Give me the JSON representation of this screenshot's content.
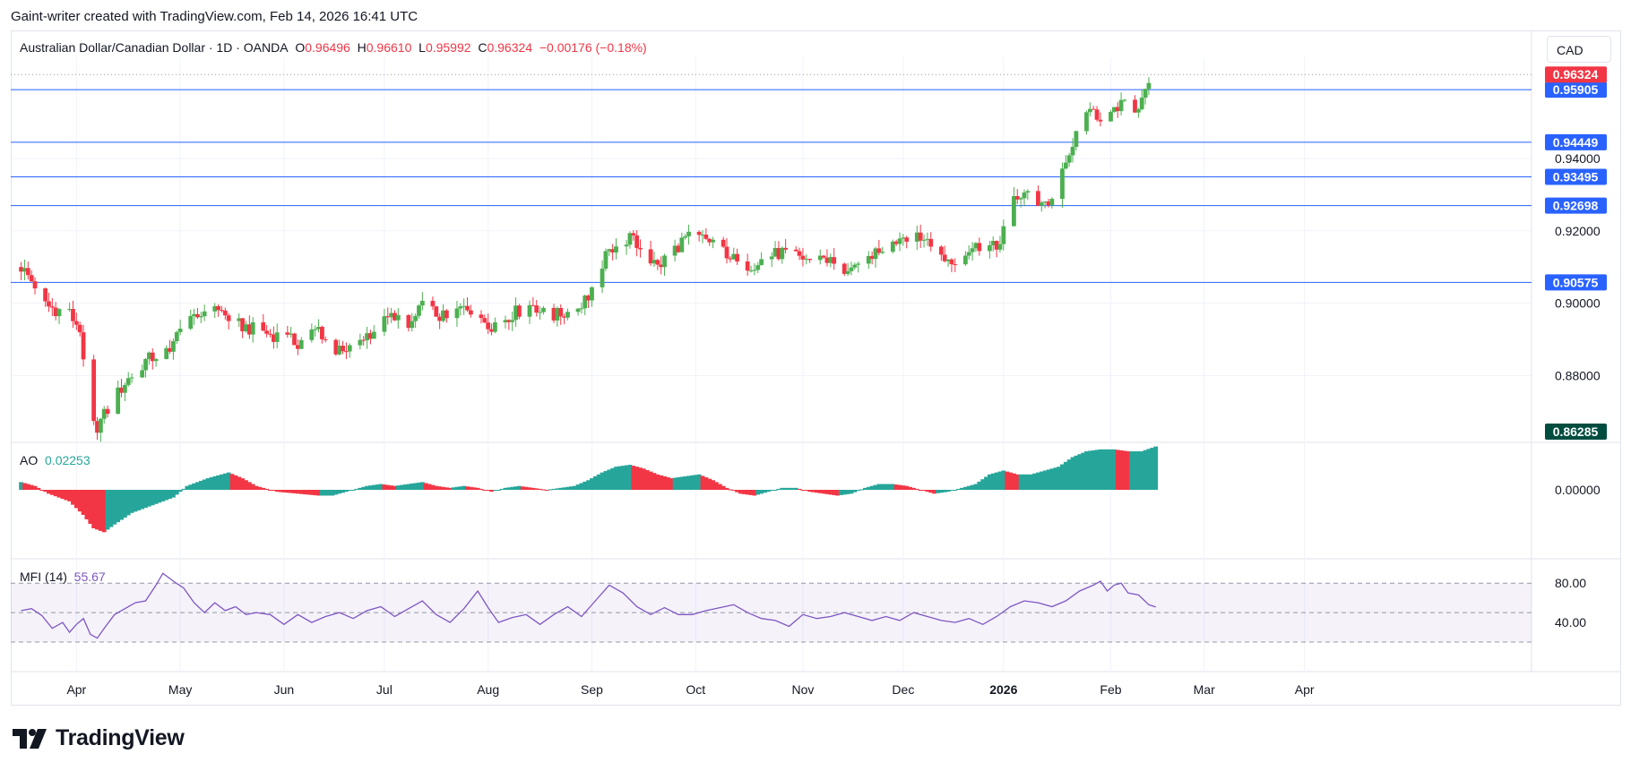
{
  "header": {
    "caption": "Gaint-writer created with TradingView.com, Feb 14, 2026 16:41 UTC"
  },
  "legend": {
    "symbol": "Australian Dollar/Canadian Dollar · 1D · OANDA",
    "o_label": "O",
    "o": "0.96496",
    "h_label": "H",
    "h": "0.96610",
    "l_label": "L",
    "l": "0.95992",
    "c_label": "C",
    "c": "0.96324",
    "change": "−0.00176 (−0.18%)"
  },
  "currency_button": "CAD",
  "ao": {
    "label": "AO",
    "value": "0.02253"
  },
  "mfi": {
    "label": "MFI (14)",
    "value": "55.67"
  },
  "branding": {
    "logo_text": "TradingView"
  },
  "colors": {
    "up": "#26a69a",
    "down": "#f23645",
    "candle_up": "#4caf50",
    "line": "#2962ff",
    "mfi": "#7e57c2"
  },
  "chart_data": [
    {
      "type": "candlestick",
      "title": "Australian Dollar/Canadian Dollar · 1D · OANDA",
      "y_range": [
        0.862,
        0.968
      ],
      "y_ticks": [
        "0.94000",
        "0.92000",
        "0.90000",
        "0.88000"
      ],
      "x_ticks": [
        {
          "label": "Apr",
          "day": 16
        },
        {
          "label": "May",
          "day": 46
        },
        {
          "label": "Jun",
          "day": 76
        },
        {
          "label": "Jul",
          "day": 105
        },
        {
          "label": "Aug",
          "day": 135
        },
        {
          "label": "Sep",
          "day": 165
        },
        {
          "label": "Oct",
          "day": 195
        },
        {
          "label": "Nov",
          "day": 226
        },
        {
          "label": "Dec",
          "day": 255
        },
        {
          "label": "2026",
          "day": 284,
          "bold": true
        },
        {
          "label": "Feb",
          "day": 315
        },
        {
          "label": "Mar",
          "day": 342
        },
        {
          "label": "Apr",
          "day": 371
        }
      ],
      "horizontal_lines": [
        {
          "value": 0.95905,
          "label": "0.95905"
        },
        {
          "value": 0.94449,
          "label": "0.94449"
        },
        {
          "value": 0.93495,
          "label": "0.93495"
        },
        {
          "value": 0.92698,
          "label": "0.92698"
        },
        {
          "value": 0.90575,
          "label": "0.90575"
        }
      ],
      "last_price": {
        "value": 0.96324,
        "label": "0.96324"
      },
      "low_marker": {
        "value": 0.86285,
        "label": "0.86285"
      },
      "close_path": [
        [
          0,
          0.91
        ],
        [
          4,
          0.905
        ],
        [
          8,
          0.899
        ],
        [
          14,
          0.897
        ],
        [
          17,
          0.893
        ],
        [
          19,
          0.872
        ],
        [
          20,
          0.866
        ],
        [
          22,
          0.866
        ],
        [
          26,
          0.872
        ],
        [
          30,
          0.878
        ],
        [
          36,
          0.884
        ],
        [
          42,
          0.887
        ],
        [
          46,
          0.892
        ],
        [
          52,
          0.897
        ],
        [
          56,
          0.9
        ],
        [
          60,
          0.895
        ],
        [
          66,
          0.893
        ],
        [
          70,
          0.892
        ],
        [
          74,
          0.891
        ],
        [
          80,
          0.889
        ],
        [
          86,
          0.893
        ],
        [
          90,
          0.887
        ],
        [
          94,
          0.886
        ],
        [
          98,
          0.89
        ],
        [
          104,
          0.894
        ],
        [
          108,
          0.897
        ],
        [
          112,
          0.893
        ],
        [
          116,
          0.899
        ],
        [
          120,
          0.897
        ],
        [
          124,
          0.895
        ],
        [
          128,
          0.9
        ],
        [
          132,
          0.897
        ],
        [
          136,
          0.894
        ],
        [
          140,
          0.896
        ],
        [
          144,
          0.898
        ],
        [
          148,
          0.9
        ],
        [
          152,
          0.896
        ],
        [
          156,
          0.897
        ],
        [
          160,
          0.898
        ],
        [
          164,
          0.902
        ],
        [
          168,
          0.911
        ],
        [
          172,
          0.917
        ],
        [
          176,
          0.918
        ],
        [
          180,
          0.914
        ],
        [
          184,
          0.91
        ],
        [
          188,
          0.914
        ],
        [
          192,
          0.918
        ],
        [
          196,
          0.918
        ],
        [
          200,
          0.917
        ],
        [
          204,
          0.914
        ],
        [
          208,
          0.91
        ],
        [
          212,
          0.911
        ],
        [
          216,
          0.913
        ],
        [
          220,
          0.914
        ],
        [
          224,
          0.913
        ],
        [
          228,
          0.912
        ],
        [
          232,
          0.913
        ],
        [
          236,
          0.91
        ],
        [
          240,
          0.908
        ],
        [
          244,
          0.912
        ],
        [
          248,
          0.915
        ],
        [
          252,
          0.917
        ],
        [
          256,
          0.919
        ],
        [
          258,
          0.92
        ],
        [
          262,
          0.917
        ],
        [
          266,
          0.913
        ],
        [
          270,
          0.911
        ],
        [
          274,
          0.915
        ],
        [
          278,
          0.916
        ],
        [
          282,
          0.915
        ],
        [
          284,
          0.921
        ],
        [
          286,
          0.929
        ],
        [
          290,
          0.93
        ],
        [
          294,
          0.928
        ],
        [
          298,
          0.928
        ],
        [
          302,
          0.938
        ],
        [
          306,
          0.949
        ],
        [
          310,
          0.953
        ],
        [
          314,
          0.95
        ],
        [
          318,
          0.955
        ],
        [
          322,
          0.953
        ],
        [
          326,
          0.962
        ],
        [
          328,
          0.963
        ]
      ]
    },
    {
      "type": "bar",
      "title": "AO",
      "y_ticks": [
        "0.00000"
      ],
      "series": [
        {
          "name": "AO",
          "path": [
            [
              0,
              0.004
            ],
            [
              4,
              0.002
            ],
            [
              8,
              -0.002
            ],
            [
              14,
              -0.006
            ],
            [
              18,
              -0.013
            ],
            [
              21,
              -0.02
            ],
            [
              24,
              -0.022
            ],
            [
              27,
              -0.018
            ],
            [
              32,
              -0.012
            ],
            [
              38,
              -0.008
            ],
            [
              44,
              -0.004
            ],
            [
              48,
              0.002
            ],
            [
              54,
              0.006
            ],
            [
              60,
              0.009
            ],
            [
              64,
              0.006
            ],
            [
              68,
              0.002
            ],
            [
              74,
              -0.001
            ],
            [
              80,
              -0.002
            ],
            [
              86,
              -0.003
            ],
            [
              90,
              -0.003
            ],
            [
              94,
              -0.001
            ],
            [
              100,
              0.002
            ],
            [
              104,
              0.003
            ],
            [
              108,
              0.002
            ],
            [
              112,
              0.003
            ],
            [
              116,
              0.004
            ],
            [
              120,
              0.002
            ],
            [
              124,
              0.001
            ],
            [
              128,
              0.002
            ],
            [
              132,
              0.001
            ],
            [
              136,
              -0.001
            ],
            [
              140,
              0.001
            ],
            [
              144,
              0.002
            ],
            [
              148,
              0.001
            ],
            [
              152,
              0.0
            ],
            [
              156,
              0.001
            ],
            [
              160,
              0.002
            ],
            [
              164,
              0.005
            ],
            [
              168,
              0.009
            ],
            [
              172,
              0.012
            ],
            [
              176,
              0.013
            ],
            [
              180,
              0.011
            ],
            [
              184,
              0.008
            ],
            [
              188,
              0.006
            ],
            [
              192,
              0.007
            ],
            [
              196,
              0.008
            ],
            [
              200,
              0.005
            ],
            [
              204,
              0.001
            ],
            [
              208,
              -0.002
            ],
            [
              212,
              -0.003
            ],
            [
              216,
              -0.001
            ],
            [
              220,
              0.001
            ],
            [
              224,
              0.001
            ],
            [
              228,
              -0.001
            ],
            [
              232,
              -0.002
            ],
            [
              236,
              -0.003
            ],
            [
              240,
              -0.002
            ],
            [
              244,
              0.001
            ],
            [
              248,
              0.003
            ],
            [
              252,
              0.003
            ],
            [
              256,
              0.002
            ],
            [
              260,
              0.0
            ],
            [
              264,
              -0.002
            ],
            [
              268,
              -0.001
            ],
            [
              272,
              0.001
            ],
            [
              276,
              0.003
            ],
            [
              280,
              0.008
            ],
            [
              284,
              0.01
            ],
            [
              288,
              0.008
            ],
            [
              292,
              0.008
            ],
            [
              296,
              0.01
            ],
            [
              300,
              0.012
            ],
            [
              304,
              0.017
            ],
            [
              308,
              0.02
            ],
            [
              312,
              0.021
            ],
            [
              316,
              0.021
            ],
            [
              320,
              0.02
            ],
            [
              324,
              0.02
            ],
            [
              328,
              0.0225
            ]
          ]
        }
      ]
    },
    {
      "type": "line",
      "title": "MFI (14)",
      "y_ticks": [
        "80.00",
        "40.00"
      ],
      "bands": [
        20,
        50,
        80
      ],
      "series": [
        {
          "name": "MFI (14)",
          "points": [
            [
              0,
              52
            ],
            [
              3,
              54
            ],
            [
              6,
              47
            ],
            [
              9,
              34
            ],
            [
              12,
              40
            ],
            [
              14,
              30
            ],
            [
              16,
              38
            ],
            [
              18,
              44
            ],
            [
              20,
              28
            ],
            [
              22,
              24
            ],
            [
              24,
              34
            ],
            [
              27,
              48
            ],
            [
              30,
              54
            ],
            [
              33,
              60
            ],
            [
              36,
              62
            ],
            [
              39,
              78
            ],
            [
              41,
              90
            ],
            [
              44,
              82
            ],
            [
              47,
              75
            ],
            [
              50,
              60
            ],
            [
              53,
              50
            ],
            [
              56,
              60
            ],
            [
              59,
              52
            ],
            [
              62,
              56
            ],
            [
              65,
              48
            ],
            [
              68,
              50
            ],
            [
              72,
              48
            ],
            [
              76,
              38
            ],
            [
              80,
              48
            ],
            [
              84,
              40
            ],
            [
              88,
              46
            ],
            [
              92,
              50
            ],
            [
              96,
              44
            ],
            [
              100,
              52
            ],
            [
              104,
              56
            ],
            [
              108,
              46
            ],
            [
              112,
              54
            ],
            [
              116,
              62
            ],
            [
              120,
              48
            ],
            [
              124,
              40
            ],
            [
              128,
              54
            ],
            [
              132,
              72
            ],
            [
              135,
              55
            ],
            [
              138,
              40
            ],
            [
              142,
              45
            ],
            [
              146,
              48
            ],
            [
              150,
              38
            ],
            [
              154,
              48
            ],
            [
              158,
              56
            ],
            [
              162,
              46
            ],
            [
              166,
              62
            ],
            [
              170,
              78
            ],
            [
              174,
              70
            ],
            [
              178,
              56
            ],
            [
              182,
              48
            ],
            [
              186,
              55
            ],
            [
              190,
              48
            ],
            [
              194,
              48
            ],
            [
              198,
              52
            ],
            [
              202,
              55
            ],
            [
              206,
              58
            ],
            [
              210,
              50
            ],
            [
              214,
              44
            ],
            [
              218,
              42
            ],
            [
              222,
              36
            ],
            [
              226,
              48
            ],
            [
              230,
              44
            ],
            [
              234,
              46
            ],
            [
              238,
              50
            ],
            [
              242,
              46
            ],
            [
              246,
              42
            ],
            [
              250,
              46
            ],
            [
              254,
              42
            ],
            [
              258,
              50
            ],
            [
              262,
              46
            ],
            [
              266,
              42
            ],
            [
              270,
              40
            ],
            [
              274,
              44
            ],
            [
              278,
              38
            ],
            [
              282,
              46
            ],
            [
              286,
              56
            ],
            [
              290,
              62
            ],
            [
              294,
              60
            ],
            [
              298,
              56
            ],
            [
              302,
              62
            ],
            [
              306,
              72
            ],
            [
              310,
              78
            ],
            [
              312,
              82
            ],
            [
              314,
              72
            ],
            [
              316,
              78
            ],
            [
              318,
              80
            ],
            [
              320,
              70
            ],
            [
              323,
              68
            ],
            [
              326,
              58
            ],
            [
              328,
              55.67
            ]
          ]
        }
      ]
    }
  ]
}
